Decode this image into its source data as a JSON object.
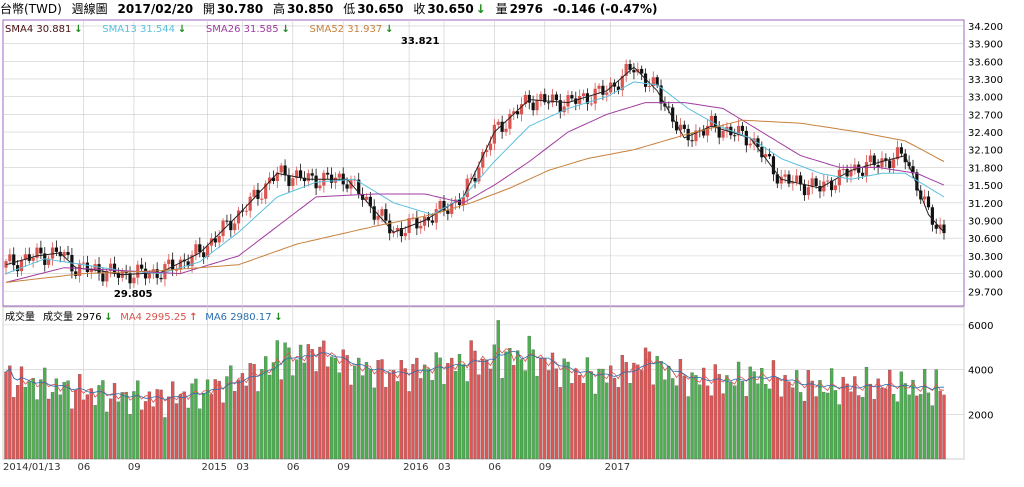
{
  "header": {
    "instrument": "台幣(TWD)",
    "period": "週線圖",
    "date": "2017/02/20",
    "open_label": "開",
    "open": "30.780",
    "high_label": "高",
    "high": "30.850",
    "low_label": "低",
    "low": "30.650",
    "close_label": "收",
    "close": "30.650",
    "volume_label": "量",
    "volume": "2976",
    "change": "-0.146 (-0.47%)",
    "down_arrow": "↓"
  },
  "colors": {
    "up": "#d9534f",
    "down": "#111111",
    "vol_up": "#e05555",
    "vol_down": "#4caf50",
    "sma4": "#222222",
    "sma13": "#5bc0de",
    "sma26": "#a03ca0",
    "sma52": "#c8803c",
    "ma4": "#d9534f",
    "ma6": "#2a6fb0",
    "frame": "#a066c0",
    "grid": "#cccccc"
  },
  "chart_data": [
    {
      "type": "line",
      "title": "",
      "legend": [
        {
          "label": "SMA4",
          "value": "30.881",
          "arrow": "↓",
          "color": "#4a1010"
        },
        {
          "label": "SMA13",
          "value": "31.544",
          "arrow": "↓",
          "color": "#5bc0de"
        },
        {
          "label": "SMA26",
          "value": "31.585",
          "arrow": "↓",
          "color": "#a03ca0"
        },
        {
          "label": "SMA52",
          "value": "31.937",
          "arrow": "↓",
          "color": "#c8803c"
        }
      ],
      "x_ticks": [
        "2014/01/13",
        "06",
        "09",
        "2015",
        "03",
        "06",
        "09",
        "2016",
        "03",
        "06",
        "09",
        "2017"
      ],
      "y_ticks": [
        "34.200",
        "33.900",
        "33.600",
        "33.300",
        "33.000",
        "32.700",
        "32.400",
        "32.100",
        "31.800",
        "31.500",
        "31.200",
        "30.900",
        "30.600",
        "30.300",
        "30.000",
        "29.700"
      ],
      "ylim": [
        29.45,
        34.3
      ],
      "annotations": [
        {
          "text": "33.821",
          "x": "2016",
          "y": 33.821
        },
        {
          "text": "29.805",
          "x": "2014/06",
          "y": 29.805
        }
      ],
      "series": [
        {
          "name": "SMA4",
          "color": "#222222",
          "points": [
            [
              0,
              30.15
            ],
            [
              8,
              30.3
            ],
            [
              14,
              30.35
            ],
            [
              18,
              30.1
            ],
            [
              24,
              30.05
            ],
            [
              30,
              29.98
            ],
            [
              40,
              30.02
            ],
            [
              50,
              30.35
            ],
            [
              60,
              31.0
            ],
            [
              70,
              31.7
            ],
            [
              78,
              31.6
            ],
            [
              88,
              31.6
            ],
            [
              100,
              30.7
            ],
            [
              108,
              30.9
            ],
            [
              118,
              31.3
            ],
            [
              126,
              32.4
            ],
            [
              135,
              32.95
            ],
            [
              145,
              32.9
            ],
            [
              155,
              33.1
            ],
            [
              162,
              33.5
            ],
            [
              168,
              33.1
            ],
            [
              175,
              32.3
            ],
            [
              182,
              32.5
            ],
            [
              192,
              32.3
            ],
            [
              200,
              31.6
            ],
            [
              210,
              31.45
            ],
            [
              218,
              31.75
            ],
            [
              226,
              31.9
            ],
            [
              232,
              32.0
            ],
            [
              238,
              31.0
            ],
            [
              242,
              30.7
            ]
          ]
        },
        {
          "name": "SMA13",
          "color": "#5bc0de",
          "points": [
            [
              0,
              30.0
            ],
            [
              10,
              30.25
            ],
            [
              20,
              30.15
            ],
            [
              30,
              30.05
            ],
            [
              40,
              30.0
            ],
            [
              50,
              30.2
            ],
            [
              60,
              30.7
            ],
            [
              70,
              31.3
            ],
            [
              80,
              31.55
            ],
            [
              90,
              31.6
            ],
            [
              100,
              31.2
            ],
            [
              110,
              31.0
            ],
            [
              118,
              31.3
            ],
            [
              126,
              31.9
            ],
            [
              135,
              32.5
            ],
            [
              145,
              32.8
            ],
            [
              155,
              33.0
            ],
            [
              162,
              33.25
            ],
            [
              168,
              33.2
            ],
            [
              176,
              32.8
            ],
            [
              184,
              32.5
            ],
            [
              192,
              32.3
            ],
            [
              200,
              31.95
            ],
            [
              210,
              31.7
            ],
            [
              218,
              31.6
            ],
            [
              226,
              31.7
            ],
            [
              232,
              31.7
            ],
            [
              242,
              31.3
            ]
          ]
        },
        {
          "name": "SMA26",
          "color": "#a03ca0",
          "points": [
            [
              0,
              29.85
            ],
            [
              15,
              30.1
            ],
            [
              30,
              30.05
            ],
            [
              45,
              30.0
            ],
            [
              60,
              30.3
            ],
            [
              70,
              30.8
            ],
            [
              80,
              31.3
            ],
            [
              95,
              31.35
            ],
            [
              108,
              31.35
            ],
            [
              118,
              31.2
            ],
            [
              126,
              31.5
            ],
            [
              135,
              31.9
            ],
            [
              145,
              32.4
            ],
            [
              155,
              32.7
            ],
            [
              165,
              32.9
            ],
            [
              175,
              32.9
            ],
            [
              185,
              32.8
            ],
            [
              195,
              32.4
            ],
            [
              205,
              32.0
            ],
            [
              215,
              31.8
            ],
            [
              225,
              31.8
            ],
            [
              235,
              31.7
            ],
            [
              242,
              31.5
            ]
          ]
        },
        {
          "name": "SMA52",
          "color": "#c8803c",
          "points": [
            [
              0,
              29.85
            ],
            [
              20,
              30.0
            ],
            [
              40,
              30.05
            ],
            [
              60,
              30.15
            ],
            [
              75,
              30.5
            ],
            [
              95,
              30.8
            ],
            [
              110,
              31.0
            ],
            [
              120,
              31.2
            ],
            [
              130,
              31.45
            ],
            [
              140,
              31.75
            ],
            [
              150,
              31.95
            ],
            [
              162,
              32.1
            ],
            [
              175,
              32.35
            ],
            [
              190,
              32.6
            ],
            [
              205,
              32.55
            ],
            [
              220,
              32.4
            ],
            [
              232,
              32.25
            ],
            [
              242,
              31.9
            ]
          ]
        }
      ]
    },
    {
      "type": "bar",
      "title": "成交量",
      "legend": [
        {
          "label": "成交量",
          "value": "2976",
          "arrow": "↓",
          "color": "#000000"
        },
        {
          "label": "MA4",
          "value": "2995.25",
          "arrow": "↑",
          "color": "#d9534f"
        },
        {
          "label": "MA6",
          "value": "2980.17",
          "arrow": "↓",
          "color": "#2a6fb0"
        }
      ],
      "y_ticks": [
        "6000",
        "4000",
        "2000"
      ],
      "ylim": [
        0,
        6800
      ],
      "anchors": [
        [
          0,
          3600
        ],
        [
          10,
          3300
        ],
        [
          20,
          3000
        ],
        [
          30,
          2800
        ],
        [
          40,
          2700
        ],
        [
          50,
          3000
        ],
        [
          60,
          3600
        ],
        [
          70,
          4200
        ],
        [
          80,
          4800
        ],
        [
          90,
          4100
        ],
        [
          100,
          3800
        ],
        [
          110,
          4100
        ],
        [
          120,
          4300
        ],
        [
          128,
          4500
        ],
        [
          135,
          4600
        ],
        [
          145,
          3900
        ],
        [
          155,
          3700
        ],
        [
          165,
          4300
        ],
        [
          175,
          3600
        ],
        [
          185,
          3500
        ],
        [
          195,
          3700
        ],
        [
          205,
          3300
        ],
        [
          215,
          3200
        ],
        [
          225,
          3300
        ],
        [
          235,
          3200
        ],
        [
          242,
          3000
        ]
      ],
      "highlights": [
        [
          70,
          5300
        ],
        [
          72,
          5200
        ],
        [
          76,
          5100
        ],
        [
          120,
          5300
        ],
        [
          127,
          6200
        ],
        [
          135,
          5500
        ],
        [
          166,
          4800
        ],
        [
          240,
          4000
        ]
      ]
    }
  ]
}
